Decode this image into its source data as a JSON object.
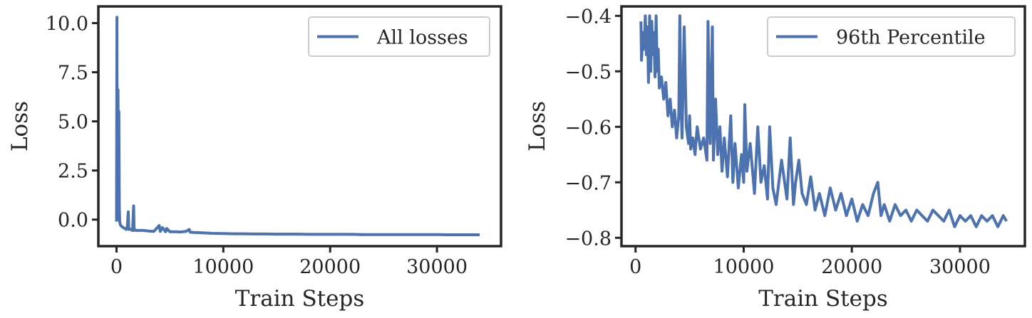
{
  "chart_data": [
    {
      "type": "line",
      "title": "",
      "xlabel": "Train Steps",
      "ylabel": "Loss",
      "xlim": [
        -1700,
        36000
      ],
      "ylim": [
        -1.35,
        10.85
      ],
      "xticks": [
        0,
        10000,
        20000,
        30000
      ],
      "xtick_labels": [
        "0",
        "10000",
        "20000",
        "30000"
      ],
      "yticks": [
        10.0,
        7.5,
        5.0,
        2.5,
        0.0
      ],
      "ytick_labels": [
        "10.0",
        "7.5",
        "5.0",
        "2.5",
        "0.0"
      ],
      "grid": false,
      "legend": "upper right",
      "series": [
        {
          "name": "All losses",
          "color": "#4c72b0",
          "x": [
            0,
            40,
            60,
            80,
            100,
            140,
            180,
            220,
            260,
            300,
            350,
            400,
            500,
            600,
            700,
            800,
            900,
            1000,
            1100,
            1150,
            1200,
            1300,
            1500,
            1600,
            1650,
            1700,
            1800,
            2000,
            2500,
            3000,
            3500,
            4000,
            4100,
            4300,
            4600,
            4700,
            5000,
            5500,
            6000,
            6500,
            6800,
            6900,
            7200,
            7500,
            8000,
            9000,
            10000,
            11000,
            12000,
            13000,
            14000,
            15000,
            16000,
            17000,
            18000,
            19000,
            20000,
            21000,
            22000,
            23000,
            24000,
            25000,
            26000,
            27000,
            28000,
            29000,
            30000,
            31000,
            32000,
            33000,
            34000
          ],
          "y": [
            -0.1,
            10.3,
            1.0,
            4.8,
            0.0,
            6.6,
            0.2,
            5.5,
            0.6,
            -0.1,
            -0.25,
            -0.3,
            -0.35,
            -0.4,
            -0.42,
            -0.45,
            -0.5,
            -0.45,
            0.4,
            -0.5,
            -0.45,
            -0.5,
            -0.55,
            0.7,
            -0.55,
            -0.5,
            -0.55,
            -0.55,
            -0.55,
            -0.58,
            -0.6,
            -0.3,
            -0.6,
            -0.4,
            -0.62,
            -0.45,
            -0.62,
            -0.62,
            -0.63,
            -0.6,
            -0.5,
            -0.64,
            -0.65,
            -0.66,
            -0.67,
            -0.7,
            -0.71,
            -0.72,
            -0.72,
            -0.73,
            -0.73,
            -0.74,
            -0.74,
            -0.74,
            -0.75,
            -0.75,
            -0.75,
            -0.75,
            -0.75,
            -0.76,
            -0.76,
            -0.76,
            -0.76,
            -0.76,
            -0.76,
            -0.76,
            -0.76,
            -0.77,
            -0.77,
            -0.77,
            -0.77
          ]
        }
      ]
    },
    {
      "type": "line",
      "title": "",
      "xlabel": "Train Steps",
      "ylabel": "Loss",
      "xlim": [
        -1300,
        36000
      ],
      "ylim": [
        -0.815,
        -0.383
      ],
      "xticks": [
        0,
        10000,
        20000,
        30000
      ],
      "xtick_labels": [
        "0",
        "10000",
        "20000",
        "30000"
      ],
      "yticks": [
        -0.4,
        -0.5,
        -0.6,
        -0.7,
        -0.8
      ],
      "ytick_labels": [
        "−0.4",
        "−0.5",
        "−0.6",
        "−0.7",
        "−0.8"
      ],
      "grid": false,
      "legend": "upper right",
      "series": [
        {
          "name": "96th Percentile",
          "color": "#4c72b0",
          "x": [
            500,
            550,
            700,
            800,
            900,
            1000,
            1100,
            1200,
            1300,
            1400,
            1500,
            1600,
            1700,
            1800,
            1900,
            2000,
            2100,
            2200,
            2400,
            2600,
            2800,
            3000,
            3200,
            3400,
            3600,
            3800,
            4000,
            4100,
            4200,
            4300,
            4500,
            4700,
            4900,
            5000,
            5100,
            5300,
            5500,
            5700,
            6000,
            6300,
            6600,
            6700,
            6900,
            7100,
            7200,
            7400,
            7600,
            7800,
            8000,
            8200,
            8500,
            8800,
            9000,
            9200,
            9500,
            9800,
            10000,
            10100,
            10300,
            10600,
            11000,
            11300,
            11600,
            11900,
            12200,
            12400,
            12700,
            13000,
            13500,
            14000,
            14300,
            14600,
            14800,
            15100,
            15400,
            15800,
            16200,
            16600,
            17000,
            17500,
            18000,
            18500,
            19000,
            19500,
            20000,
            20500,
            21000,
            21500,
            22000,
            22400,
            22700,
            23000,
            23500,
            24000,
            24500,
            25000,
            25500,
            26000,
            26500,
            27000,
            27500,
            28000,
            28500,
            29000,
            29500,
            30000,
            30500,
            31000,
            31500,
            32000,
            32500,
            33000,
            33500,
            34000,
            34300
          ],
          "y": [
            -0.41,
            -0.48,
            -0.43,
            -0.46,
            -0.4,
            -0.47,
            -0.42,
            -0.52,
            -0.4,
            -0.5,
            -0.41,
            -0.47,
            -0.43,
            -0.51,
            -0.4,
            -0.5,
            -0.46,
            -0.53,
            -0.51,
            -0.55,
            -0.52,
            -0.58,
            -0.55,
            -0.6,
            -0.57,
            -0.62,
            -0.58,
            -0.4,
            -0.56,
            -0.62,
            -0.42,
            -0.6,
            -0.63,
            -0.58,
            -0.64,
            -0.62,
            -0.65,
            -0.6,
            -0.64,
            -0.62,
            -0.66,
            -0.41,
            -0.63,
            -0.42,
            -0.66,
            -0.55,
            -0.65,
            -0.6,
            -0.68,
            -0.62,
            -0.69,
            -0.58,
            -0.7,
            -0.63,
            -0.71,
            -0.65,
            -0.7,
            -0.56,
            -0.68,
            -0.63,
            -0.72,
            -0.6,
            -0.7,
            -0.67,
            -0.73,
            -0.6,
            -0.71,
            -0.74,
            -0.66,
            -0.73,
            -0.62,
            -0.74,
            -0.7,
            -0.66,
            -0.72,
            -0.74,
            -0.69,
            -0.75,
            -0.72,
            -0.76,
            -0.71,
            -0.75,
            -0.72,
            -0.76,
            -0.73,
            -0.77,
            -0.74,
            -0.76,
            -0.72,
            -0.7,
            -0.76,
            -0.74,
            -0.77,
            -0.74,
            -0.76,
            -0.75,
            -0.77,
            -0.75,
            -0.76,
            -0.77,
            -0.75,
            -0.76,
            -0.77,
            -0.75,
            -0.78,
            -0.76,
            -0.77,
            -0.76,
            -0.78,
            -0.76,
            -0.77,
            -0.76,
            -0.78,
            -0.76,
            -0.77
          ]
        }
      ]
    }
  ]
}
